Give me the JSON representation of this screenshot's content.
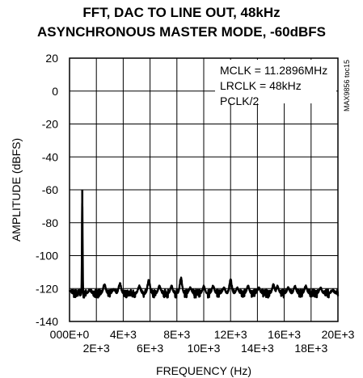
{
  "chart_data": {
    "type": "line",
    "title": "FFT, DAC TO LINE OUT, 48kHz",
    "subtitle": "ASYNCHRONOUS MASTER MODE, -60dBFS",
    "xlabel": "FREQUENCY (Hz)",
    "ylabel": "AMPLITUDE (dBFS)",
    "xlim": [
      0,
      20000
    ],
    "ylim": [
      -140,
      20
    ],
    "grid": true,
    "x_ticks": [
      {
        "value": 0,
        "label": "000E+0"
      },
      {
        "value": 2000,
        "label": "2E+3"
      },
      {
        "value": 4000,
        "label": "4E+3"
      },
      {
        "value": 6000,
        "label": "6E+3"
      },
      {
        "value": 8000,
        "label": "8E+3"
      },
      {
        "value": 10000,
        "label": "10E+3"
      },
      {
        "value": 12000,
        "label": "12E+3"
      },
      {
        "value": 14000,
        "label": "14E+3"
      },
      {
        "value": 16000,
        "label": "16E+3"
      },
      {
        "value": 18000,
        "label": "18E+3"
      },
      {
        "value": 20000,
        "label": "20E+3"
      }
    ],
    "y_ticks": [
      {
        "value": 20,
        "label": "20"
      },
      {
        "value": 0,
        "label": "0"
      },
      {
        "value": -20,
        "label": "-20"
      },
      {
        "value": -40,
        "label": "-40"
      },
      {
        "value": -60,
        "label": "-60"
      },
      {
        "value": -80,
        "label": "-80"
      },
      {
        "value": -100,
        "label": "-100"
      },
      {
        "value": -120,
        "label": "-120"
      },
      {
        "value": -140,
        "label": "-140"
      }
    ],
    "annotations": [
      "MCLK = 11.2896MHz",
      "LRCLK = 48kHz",
      "PCLK/2"
    ],
    "figure_code": "MAX9856 toc15",
    "series": [
      {
        "noise_floor_dBFS": -123,
        "points": [
          {
            "x": 0,
            "y": -121
          },
          {
            "x": 300,
            "y": -124
          },
          {
            "x": 600,
            "y": -122
          },
          {
            "x": 900,
            "y": -124
          },
          {
            "x": 950,
            "y": -60
          },
          {
            "x": 1050,
            "y": -124
          },
          {
            "x": 1500,
            "y": -121
          },
          {
            "x": 2000,
            "y": -122
          },
          {
            "x": 2600,
            "y": -117
          },
          {
            "x": 3300,
            "y": -120
          },
          {
            "x": 3750,
            "y": -116
          },
          {
            "x": 4200,
            "y": -122
          },
          {
            "x": 5200,
            "y": -118
          },
          {
            "x": 5900,
            "y": -114
          },
          {
            "x": 6700,
            "y": -118
          },
          {
            "x": 7600,
            "y": -118
          },
          {
            "x": 8300,
            "y": -113
          },
          {
            "x": 9000,
            "y": -119
          },
          {
            "x": 10000,
            "y": -118
          },
          {
            "x": 10700,
            "y": -118
          },
          {
            "x": 11500,
            "y": -119
          },
          {
            "x": 12000,
            "y": -114
          },
          {
            "x": 12500,
            "y": -119
          },
          {
            "x": 13300,
            "y": -118
          },
          {
            "x": 14100,
            "y": -119
          },
          {
            "x": 15200,
            "y": -117
          },
          {
            "x": 15500,
            "y": -118
          },
          {
            "x": 16300,
            "y": -119
          },
          {
            "x": 16800,
            "y": -118
          },
          {
            "x": 17600,
            "y": -118
          },
          {
            "x": 18700,
            "y": -119
          },
          {
            "x": 19600,
            "y": -121
          },
          {
            "x": 20000,
            "y": -122
          }
        ]
      }
    ]
  }
}
